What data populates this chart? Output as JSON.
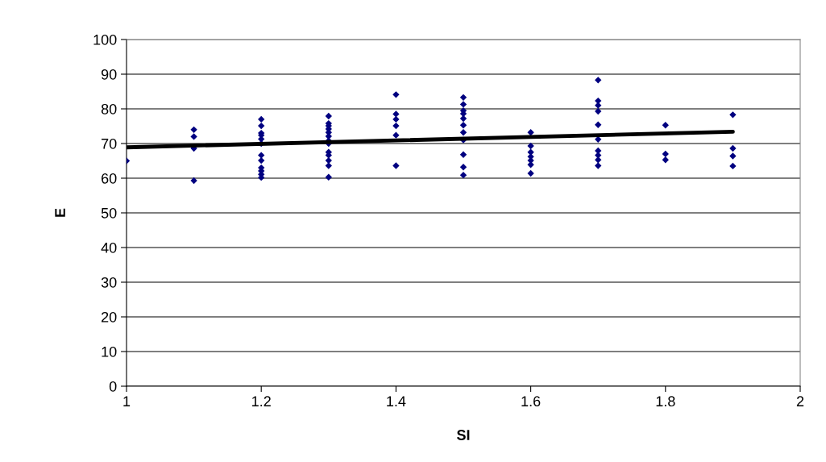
{
  "chart_data": {
    "type": "scatter",
    "xlabel": "SI",
    "ylabel": "E",
    "xlim": [
      1,
      2
    ],
    "ylim": [
      0,
      100
    ],
    "xticks": [
      1,
      1.2,
      1.4,
      1.6,
      1.8,
      2
    ],
    "yticks": [
      0,
      10,
      20,
      30,
      40,
      50,
      60,
      70,
      80,
      90,
      100
    ],
    "grid": "y",
    "legend": false,
    "series": [
      {
        "marker": "diamond",
        "color": "#000080",
        "x": [
          1,
          1.1,
          1.1,
          1.1,
          1.1,
          1.2,
          1.2,
          1.2,
          1.2,
          1.2,
          1.2,
          1.2,
          1.2,
          1.2,
          1.2,
          1.2,
          1.2,
          1.3,
          1.3,
          1.3,
          1.3,
          1.3,
          1.3,
          1.3,
          1.3,
          1.3,
          1.3,
          1.3,
          1.3,
          1.3,
          1.4,
          1.4,
          1.4,
          1.4,
          1.4,
          1.4,
          1.5,
          1.5,
          1.5,
          1.5,
          1.5,
          1.5,
          1.5,
          1.5,
          1.5,
          1.5,
          1.5,
          1.6,
          1.6,
          1.6,
          1.6,
          1.6,
          1.6,
          1.6,
          1.7,
          1.7,
          1.7,
          1.7,
          1.7,
          1.7,
          1.7,
          1.7,
          1.7,
          1.7,
          1.8,
          1.8,
          1.8,
          1.9,
          1.9,
          1.9,
          1.9
        ],
        "values": [
          65,
          74,
          72,
          68.6,
          59.3,
          77,
          75.1,
          73,
          72.4,
          71.3,
          70,
          66.6,
          65.1,
          63,
          62.1,
          61.1,
          60.2,
          77.9,
          75.8,
          75.1,
          74.2,
          73.2,
          72.1,
          70.8,
          70,
          67.5,
          66.6,
          65.1,
          63.6,
          60.3,
          84.1,
          78.5,
          77,
          75.1,
          72.4,
          63.6,
          83.3,
          81.3,
          79.5,
          78.6,
          77.2,
          75.3,
          73.2,
          71,
          66.8,
          63.2,
          60.9,
          73.2,
          69.3,
          67.5,
          66.2,
          65.1,
          63.9,
          61.4,
          88.3,
          82.3,
          81,
          79.3,
          75.4,
          71.2,
          67.9,
          66.6,
          65.3,
          63.6,
          75.3,
          67,
          65.3,
          78.3,
          68.6,
          66.4,
          63.5
        ]
      },
      {
        "type": "line",
        "marker": "none",
        "color": "#000000",
        "x": [
          1,
          1.9
        ],
        "values": [
          68.9,
          73.4
        ]
      }
    ]
  }
}
